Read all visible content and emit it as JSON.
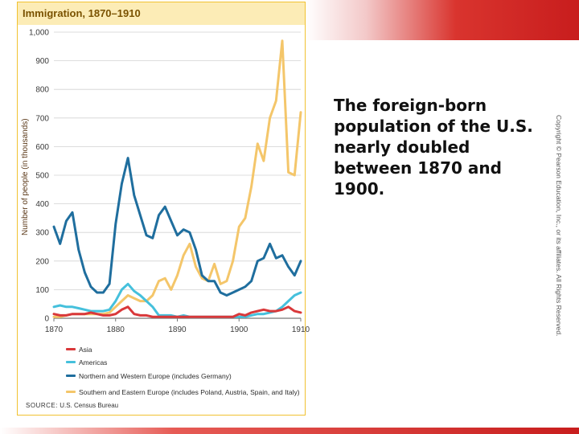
{
  "caption": "The foreign-born population of the U.S. nearly doubled between 1870 and 1900.",
  "copyright": "Copyright © Pearson Education, Inc., or its affiliates. All Rights Reserved.",
  "source": {
    "key": "SOURCE:",
    "text": "U.S. Census Bureau"
  },
  "colors": {
    "asia": "#d9383a",
    "americas": "#45c0dc",
    "north_west_europe": "#1f6e9e",
    "south_east_europe": "#f4c66a",
    "frame": "#f1c231",
    "title_bar": "#fcecb6"
  },
  "chart_data": {
    "type": "line",
    "title": "Immigration, 1870–1910",
    "xlabel": "",
    "ylabel": "Number of people (in thousands)",
    "xlim": [
      1870,
      1910
    ],
    "ylim": [
      0,
      1000
    ],
    "x_ticks": [
      1870,
      1880,
      1890,
      1900,
      1910
    ],
    "y_ticks": [
      0,
      100,
      200,
      300,
      400,
      500,
      600,
      700,
      800,
      900,
      1000
    ],
    "y_tick_labels": [
      "0",
      "100",
      "200",
      "300",
      "400",
      "500",
      "600",
      "700",
      "800",
      "900",
      "1,000"
    ],
    "grid": "horizontal",
    "legend_position": "bottom",
    "x": [
      1870,
      1871,
      1872,
      1873,
      1874,
      1875,
      1876,
      1877,
      1878,
      1879,
      1880,
      1881,
      1882,
      1883,
      1884,
      1885,
      1886,
      1887,
      1888,
      1889,
      1890,
      1891,
      1892,
      1893,
      1894,
      1895,
      1896,
      1897,
      1898,
      1899,
      1900,
      1901,
      1902,
      1903,
      1904,
      1905,
      1906,
      1907,
      1908,
      1909,
      1910
    ],
    "series": [
      {
        "name": "Asia",
        "key": "asia",
        "values": [
          15,
          10,
          10,
          15,
          15,
          15,
          20,
          15,
          10,
          10,
          15,
          30,
          40,
          15,
          10,
          10,
          5,
          5,
          5,
          5,
          5,
          5,
          5,
          5,
          5,
          5,
          5,
          5,
          5,
          5,
          15,
          10,
          20,
          25,
          30,
          25,
          25,
          30,
          40,
          25,
          20
        ]
      },
      {
        "name": "Americas",
        "key": "americas",
        "values": [
          40,
          45,
          40,
          40,
          35,
          30,
          25,
          25,
          25,
          30,
          60,
          100,
          120,
          95,
          80,
          60,
          40,
          10,
          10,
          10,
          5,
          10,
          5,
          5,
          5,
          5,
          5,
          5,
          5,
          5,
          5,
          5,
          10,
          15,
          15,
          20,
          25,
          40,
          60,
          80,
          90
        ]
      },
      {
        "name": "Northern and Western Europe (includes Germany)",
        "key": "north_west_europe",
        "values": [
          320,
          260,
          340,
          370,
          240,
          160,
          110,
          90,
          90,
          120,
          330,
          470,
          560,
          430,
          360,
          290,
          280,
          360,
          390,
          340,
          290,
          310,
          300,
          240,
          150,
          130,
          130,
          90,
          80,
          90,
          100,
          110,
          130,
          200,
          210,
          260,
          210,
          220,
          180,
          150,
          200
        ]
      },
      {
        "name": "Southern and Eastern Europe (includes Poland, Austria, Spain, and Italy)",
        "key": "south_east_europe",
        "values": [
          5,
          5,
          10,
          15,
          15,
          15,
          15,
          15,
          15,
          20,
          40,
          60,
          80,
          70,
          60,
          60,
          80,
          130,
          140,
          100,
          150,
          220,
          260,
          180,
          140,
          130,
          190,
          120,
          130,
          200,
          320,
          350,
          460,
          610,
          550,
          700,
          760,
          970,
          510,
          500,
          720
        ]
      }
    ]
  }
}
